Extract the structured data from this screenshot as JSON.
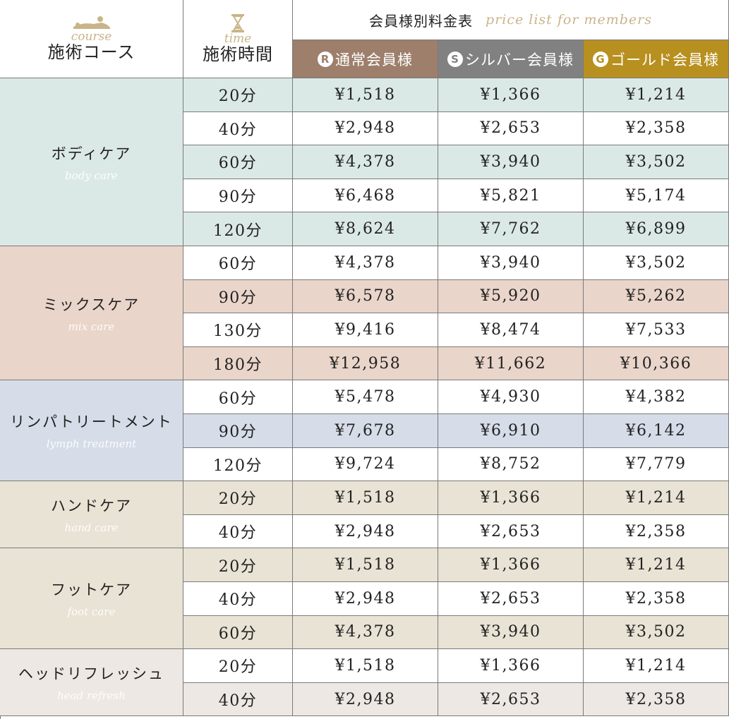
{
  "header": {
    "course_script": "course",
    "course_label": "施術コース",
    "time_script": "time",
    "time_label": "施術時間",
    "table_title": "会員様別料金表",
    "table_title_script": "price list for members",
    "tiers": [
      {
        "badge": "R",
        "label": "通常会員様",
        "color": "#9d7f6c"
      },
      {
        "badge": "S",
        "label": "シルバー会員様",
        "color": "#818181"
      },
      {
        "badge": "G",
        "label": "ゴールド会員様",
        "color": "#b8901f"
      }
    ]
  },
  "colors": {
    "body_care": "#dbe9e6",
    "mix_care": "#ead5ca",
    "lymph": "#d6dce8",
    "hand_foot": "#e8e3d4",
    "head": "#ede8e3",
    "white": "#ffffff"
  },
  "courses": [
    {
      "name": "ボディケア",
      "script": "body care",
      "color": "#dbe9e6",
      "rows": [
        {
          "time": "20分",
          "regular": "¥1,518",
          "silver": "¥1,366",
          "gold": "¥1,214",
          "shaded": true
        },
        {
          "time": "40分",
          "regular": "¥2,948",
          "silver": "¥2,653",
          "gold": "¥2,358",
          "shaded": false
        },
        {
          "time": "60分",
          "regular": "¥4,378",
          "silver": "¥3,940",
          "gold": "¥3,502",
          "shaded": true
        },
        {
          "time": "90分",
          "regular": "¥6,468",
          "silver": "¥5,821",
          "gold": "¥5,174",
          "shaded": false
        },
        {
          "time": "120分",
          "regular": "¥8,624",
          "silver": "¥7,762",
          "gold": "¥6,899",
          "shaded": true
        }
      ]
    },
    {
      "name": "ミックスケア",
      "script": "mix care",
      "color": "#ead5ca",
      "rows": [
        {
          "time": "60分",
          "regular": "¥4,378",
          "silver": "¥3,940",
          "gold": "¥3,502",
          "shaded": false
        },
        {
          "time": "90分",
          "regular": "¥6,578",
          "silver": "¥5,920",
          "gold": "¥5,262",
          "shaded": true
        },
        {
          "time": "130分",
          "regular": "¥9,416",
          "silver": "¥8,474",
          "gold": "¥7,533",
          "shaded": false
        },
        {
          "time": "180分",
          "regular": "¥12,958",
          "silver": "¥11,662",
          "gold": "¥10,366",
          "shaded": true
        }
      ]
    },
    {
      "name": "リンパトリートメント",
      "script": "lymph treatment",
      "color": "#d6dce8",
      "rows": [
        {
          "time": "60分",
          "regular": "¥5,478",
          "silver": "¥4,930",
          "gold": "¥4,382",
          "shaded": false
        },
        {
          "time": "90分",
          "regular": "¥7,678",
          "silver": "¥6,910",
          "gold": "¥6,142",
          "shaded": true
        },
        {
          "time": "120分",
          "regular": "¥9,724",
          "silver": "¥8,752",
          "gold": "¥7,779",
          "shaded": false
        }
      ]
    },
    {
      "name": "ハンドケア",
      "script": "hand care",
      "color": "#e8e3d4",
      "rows": [
        {
          "time": "20分",
          "regular": "¥1,518",
          "silver": "¥1,366",
          "gold": "¥1,214",
          "shaded": true
        },
        {
          "time": "40分",
          "regular": "¥2,948",
          "silver": "¥2,653",
          "gold": "¥2,358",
          "shaded": false
        }
      ]
    },
    {
      "name": "フットケア",
      "script": "foot care",
      "color": "#e8e3d4",
      "rows": [
        {
          "time": "20分",
          "regular": "¥1,518",
          "silver": "¥1,366",
          "gold": "¥1,214",
          "shaded": true
        },
        {
          "time": "40分",
          "regular": "¥2,948",
          "silver": "¥2,653",
          "gold": "¥2,358",
          "shaded": false
        },
        {
          "time": "60分",
          "regular": "¥4,378",
          "silver": "¥3,940",
          "gold": "¥3,502",
          "shaded": true
        }
      ]
    },
    {
      "name": "ヘッドリフレッシュ",
      "script": "head refresh",
      "color": "#ede8e3",
      "rows": [
        {
          "time": "20分",
          "regular": "¥1,518",
          "silver": "¥1,366",
          "gold": "¥1,214",
          "shaded": false
        },
        {
          "time": "40分",
          "regular": "¥2,948",
          "silver": "¥2,653",
          "gold": "¥2,358",
          "shaded": true
        }
      ]
    }
  ]
}
